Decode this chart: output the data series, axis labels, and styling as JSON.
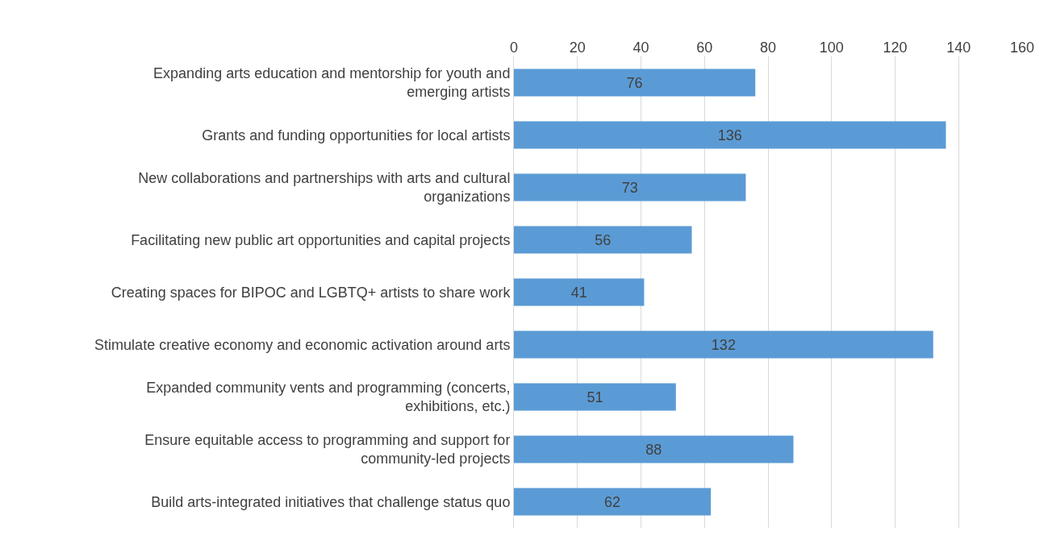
{
  "chart_data": {
    "type": "bar",
    "orientation": "horizontal",
    "categories": [
      "Expanding arts education and mentorship for youth and emerging artists",
      "Grants and funding opportunities for local artists",
      "New collaborations and partnerships with arts and cultural organizations",
      "Facilitating new public art opportunities and capital projects",
      "Creating spaces for BIPOC and LGBTQ+ artists to share work",
      "Stimulate creative economy and economic activation around arts",
      "Expanded community vents and programming (concerts, exhibitions, etc.)",
      "Ensure equitable access to programming and support for community-led projects",
      "Build arts-integrated initiatives that challenge status quo"
    ],
    "values": [
      76,
      136,
      73,
      56,
      41,
      132,
      51,
      88,
      62
    ],
    "color": "#5b9bd5",
    "xlim": [
      0,
      160
    ],
    "xticks": [
      0,
      20,
      40,
      60,
      80,
      100,
      120,
      140,
      160
    ],
    "grid": "x",
    "data_labels": true
  }
}
